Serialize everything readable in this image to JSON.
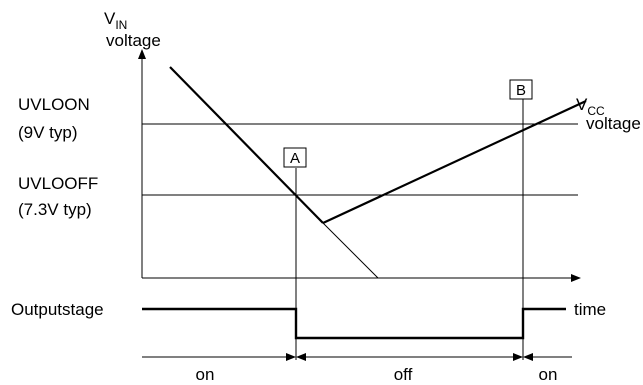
{
  "vin": {
    "main": "V",
    "sub": "IN",
    "line2": "voltage"
  },
  "vcc": {
    "main": "V",
    "sub": "CC",
    "line2": "voltage"
  },
  "levels": {
    "uvloon": {
      "name": "UVLOON",
      "value": "(9V typ)"
    },
    "uvlooff": {
      "name": "UVLOOFF",
      "value": "(7.3V typ)"
    }
  },
  "markers": {
    "a": "A",
    "b": "B"
  },
  "output_stage_label": "Outputstage",
  "time_label": "time",
  "states": {
    "first": "on",
    "middle": "off",
    "last": "on"
  }
}
